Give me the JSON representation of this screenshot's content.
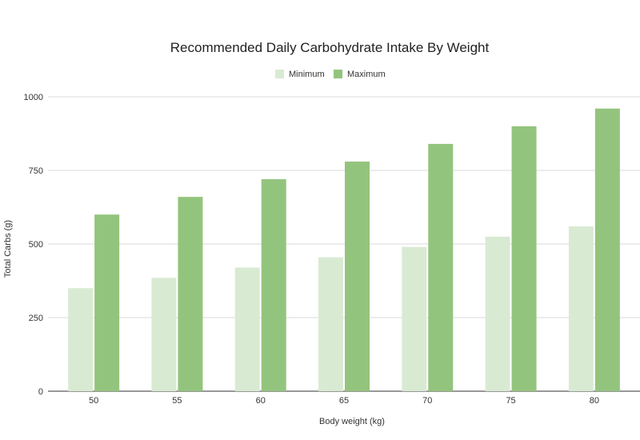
{
  "chart_data": {
    "type": "bar",
    "title": "Recommended Daily Carbohydrate Intake By Weight",
    "xlabel": "Body weight (kg)",
    "ylabel": "Total Carbs (g)",
    "categories": [
      "50",
      "55",
      "60",
      "65",
      "70",
      "75",
      "80"
    ],
    "series": [
      {
        "name": "Minimum",
        "color": "#d9ead3",
        "values": [
          350,
          385,
          420,
          455,
          490,
          525,
          560
        ]
      },
      {
        "name": "Maximum",
        "color": "#93c47d",
        "values": [
          600,
          660,
          720,
          780,
          840,
          900,
          960
        ]
      }
    ],
    "ylim": [
      0,
      1000
    ],
    "yticks": [
      0,
      250,
      500,
      750,
      1000
    ],
    "grid": true,
    "legend_position": "top-center"
  }
}
